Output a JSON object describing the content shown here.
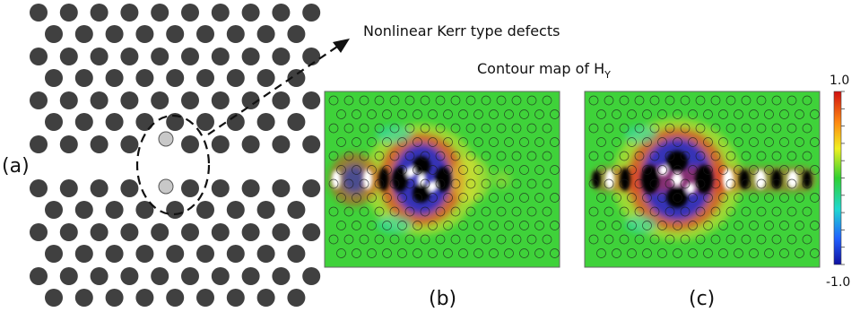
{
  "annotation": "Nonlinear Kerr type defects",
  "contour_title": "Contour map of H",
  "contour_title_sub": "Y",
  "panels": [
    {
      "label": "(a)"
    },
    {
      "label": "(b)"
    },
    {
      "label": "(c)"
    }
  ],
  "colorbar": {
    "max": "1.0",
    "min": "-1.0"
  },
  "colors": {
    "rod": "#404040",
    "defect_fill": "#c8c8c8",
    "field_background": "#3fd23a",
    "field_positive": "#e53020",
    "field_negative": "#1a2ad0",
    "field_extreme": "#000000"
  },
  "chart_data": {
    "type": "heatmap",
    "title": "Contour map of H_Y",
    "color_range": [
      -1.0,
      1.0
    ]
  }
}
